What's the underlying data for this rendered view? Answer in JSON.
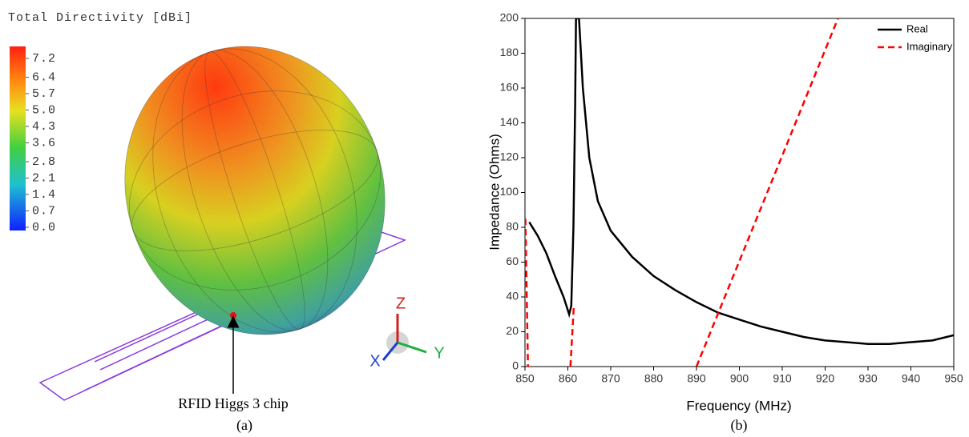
{
  "chart_data": [
    {
      "type": "pattern3d",
      "title": "Total Directivity [dBi]",
      "clim": [
        0,
        7.2
      ],
      "cticks": [
        {
          "value": 0,
          "label": "0.0"
        },
        0.7,
        1.4,
        2.1,
        2.8,
        3.6,
        4.3,
        {
          "value": 5,
          "label": "5.0"
        },
        5.7,
        6.4,
        7.2
      ],
      "axis_labels": [
        "Z",
        "Y",
        "X"
      ],
      "annotation": "RFID Higgs 3 chip",
      "caption": "(a)"
    },
    {
      "type": "line",
      "xlabel": "Frequency (MHz)",
      "ylabel": "Impedance (Ohms)",
      "caption": "(b)",
      "xlim": [
        850,
        950
      ],
      "ylim": [
        0,
        200
      ],
      "xticks": [
        850,
        860,
        870,
        880,
        890,
        900,
        910,
        920,
        930,
        940,
        950
      ],
      "yticks": [
        0,
        20,
        40,
        60,
        80,
        100,
        120,
        140,
        160,
        180,
        200
      ],
      "legend": "upper right",
      "series": [
        {
          "name": "Real",
          "color": "#000000",
          "linestyle": "solid",
          "x": [
            851,
            853,
            855,
            857,
            859,
            860.3,
            860.8,
            861.3,
            861.7,
            861.9,
            862.6,
            863.5,
            865,
            867,
            870,
            875,
            880,
            885,
            890,
            895,
            900,
            905,
            910,
            915,
            920,
            925,
            930,
            935,
            940,
            945,
            950
          ],
          "values": [
            83,
            75,
            65,
            52,
            40,
            30,
            35,
            80,
            150,
            200,
            200,
            160,
            120,
            95,
            78,
            63,
            52,
            44,
            37,
            31,
            27,
            23,
            20,
            17,
            15,
            14,
            13,
            13,
            14,
            15,
            18
          ]
        },
        {
          "name": "Imaginary",
          "color": "#ff0000",
          "linestyle": "dashed",
          "x": [
            850.1,
            850.7,
            855,
            860.6,
            861.4,
            875,
            890,
            923
          ],
          "values": [
            85,
            0,
            null,
            0,
            35,
            null,
            0,
            200
          ]
        }
      ]
    }
  ]
}
